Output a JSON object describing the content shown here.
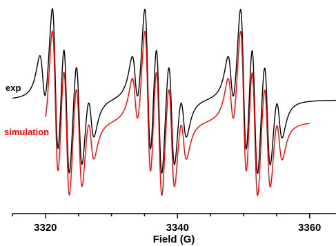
{
  "chart_data": {
    "type": "line",
    "title": "",
    "xlabel": "Field (G)",
    "ylabel": "",
    "xlim": [
      3315,
      3364
    ],
    "x_ticks": [
      3320,
      3340,
      3360
    ],
    "x_tick_labels": [
      "3320",
      "3340",
      "3360"
    ],
    "grid": false,
    "legend_placement": "left, next to traces",
    "line_groups": [
      {
        "center": 3324.0,
        "lines": [
          {
            "pos": -4.4,
            "amp": 0.35
          },
          {
            "pos": -2.5,
            "amp": 1.0
          },
          {
            "pos": -0.8,
            "amp": 0.95
          },
          {
            "pos": 1.1,
            "amp": 0.72
          },
          {
            "pos": 2.9,
            "amp": 0.3
          }
        ]
      },
      {
        "center": 3338.0,
        "lines": [
          {
            "pos": -4.4,
            "amp": 0.35
          },
          {
            "pos": -2.5,
            "amp": 1.0
          },
          {
            "pos": -0.8,
            "amp": 0.95
          },
          {
            "pos": 1.1,
            "amp": 0.72
          },
          {
            "pos": 2.9,
            "amp": 0.3
          }
        ]
      },
      {
        "center": 3352.5,
        "lines": [
          {
            "pos": -4.4,
            "amp": 0.35
          },
          {
            "pos": -2.5,
            "amp": 1.0
          },
          {
            "pos": -0.8,
            "amp": 0.95
          },
          {
            "pos": 1.1,
            "amp": 0.72
          },
          {
            "pos": 2.9,
            "amp": 0.3
          }
        ]
      }
    ],
    "linewidth_G": 0.5,
    "series": [
      {
        "name": "exp",
        "color": "#000000",
        "x_start": 3315,
        "x_end": 3364,
        "baseline_offset": 1.0
      },
      {
        "name": "simulation",
        "color": "#ff0000",
        "x_start": 3320,
        "x_end": 3360,
        "baseline_offset": 0.0
      }
    ]
  }
}
